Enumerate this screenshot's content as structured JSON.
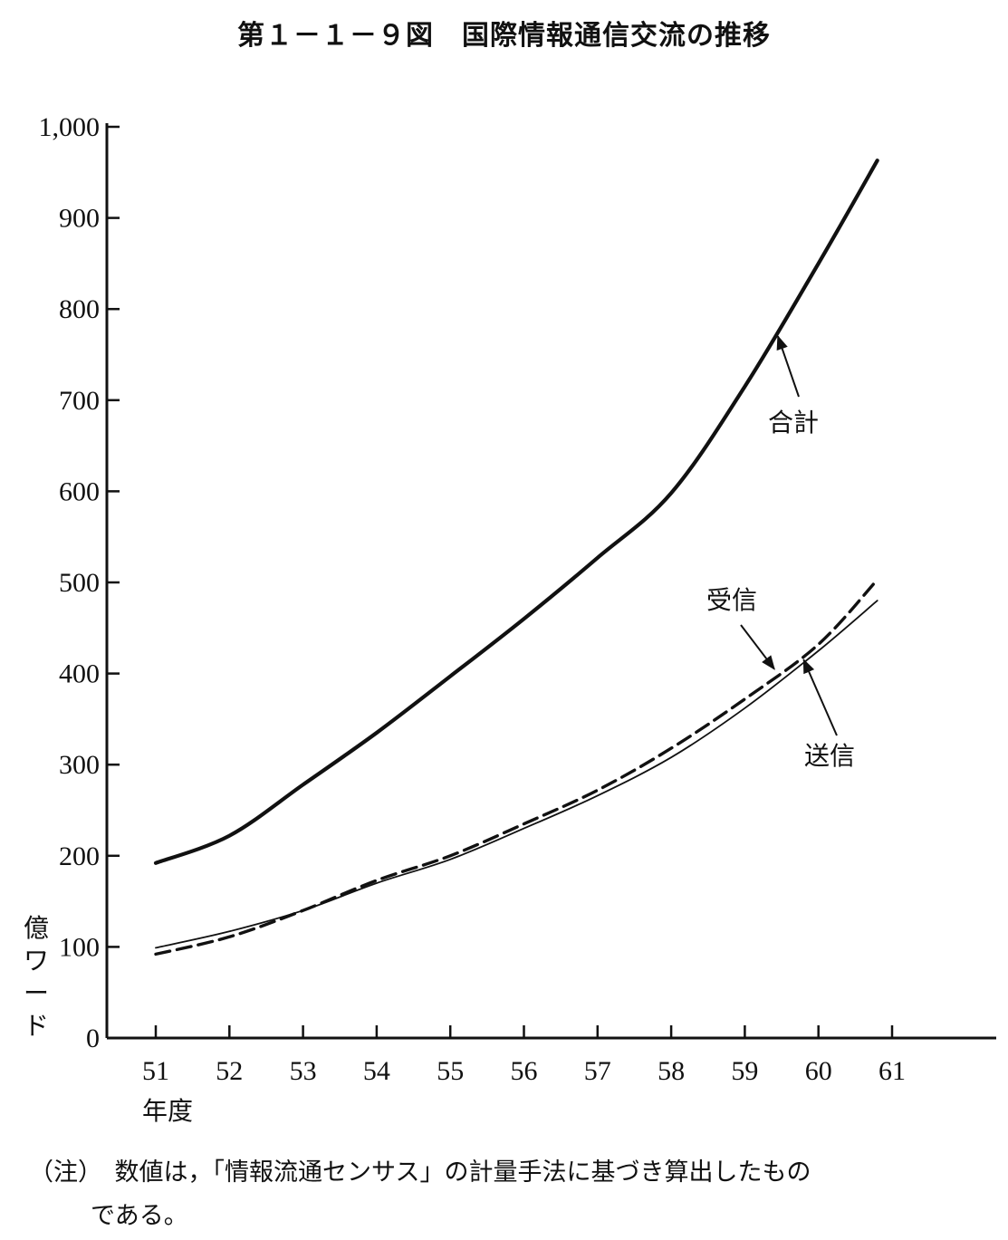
{
  "title": "第１－１－９図　国際情報通信交流の推移",
  "ylabel": "億ワード",
  "xlabel": "年度",
  "note": {
    "line1": "（注）　数値は，「情報流通センサス」の計量手法に基づき算出したもの",
    "line2": "である。"
  },
  "chart_data": {
    "type": "line",
    "x": [
      51,
      52,
      53,
      54,
      55,
      56,
      57,
      58,
      59,
      60,
      61
    ],
    "x_tick_labels": [
      "51",
      "52",
      "53",
      "54",
      "55",
      "56",
      "57",
      "58",
      "59",
      "60",
      "61"
    ],
    "y_ticks": [
      0,
      100,
      200,
      300,
      400,
      500,
      600,
      700,
      800,
      900,
      1000
    ],
    "y_tick_labels": [
      "0",
      "100",
      "200",
      "300",
      "400",
      "500",
      "600",
      "700",
      "800",
      "900",
      "1,000"
    ],
    "ylim": [
      0,
      1000
    ],
    "xlim": [
      51,
      61
    ],
    "grid": false,
    "series": [
      {
        "name": "合計",
        "style": "solid-thick",
        "color": "#111111",
        "x": [
          51,
          52,
          53,
          54,
          55,
          56,
          57,
          58,
          59,
          60,
          60.8
        ],
        "values": [
          192,
          222,
          278,
          335,
          397,
          460,
          527,
          598,
          715,
          850,
          963
        ]
      },
      {
        "name": "受信",
        "style": "dashed",
        "color": "#111111",
        "x": [
          51,
          52,
          53,
          54,
          55,
          56,
          57,
          58,
          59,
          60,
          60.8
        ],
        "values": [
          92,
          111,
          140,
          173,
          200,
          235,
          272,
          318,
          372,
          432,
          503
        ]
      },
      {
        "name": "送信",
        "style": "solid-thin",
        "color": "#111111",
        "x": [
          51,
          52,
          53,
          54,
          55,
          56,
          57,
          58,
          59,
          60,
          60.8
        ],
        "values": [
          99,
          117,
          140,
          170,
          196,
          230,
          266,
          308,
          362,
          425,
          480
        ]
      }
    ]
  }
}
